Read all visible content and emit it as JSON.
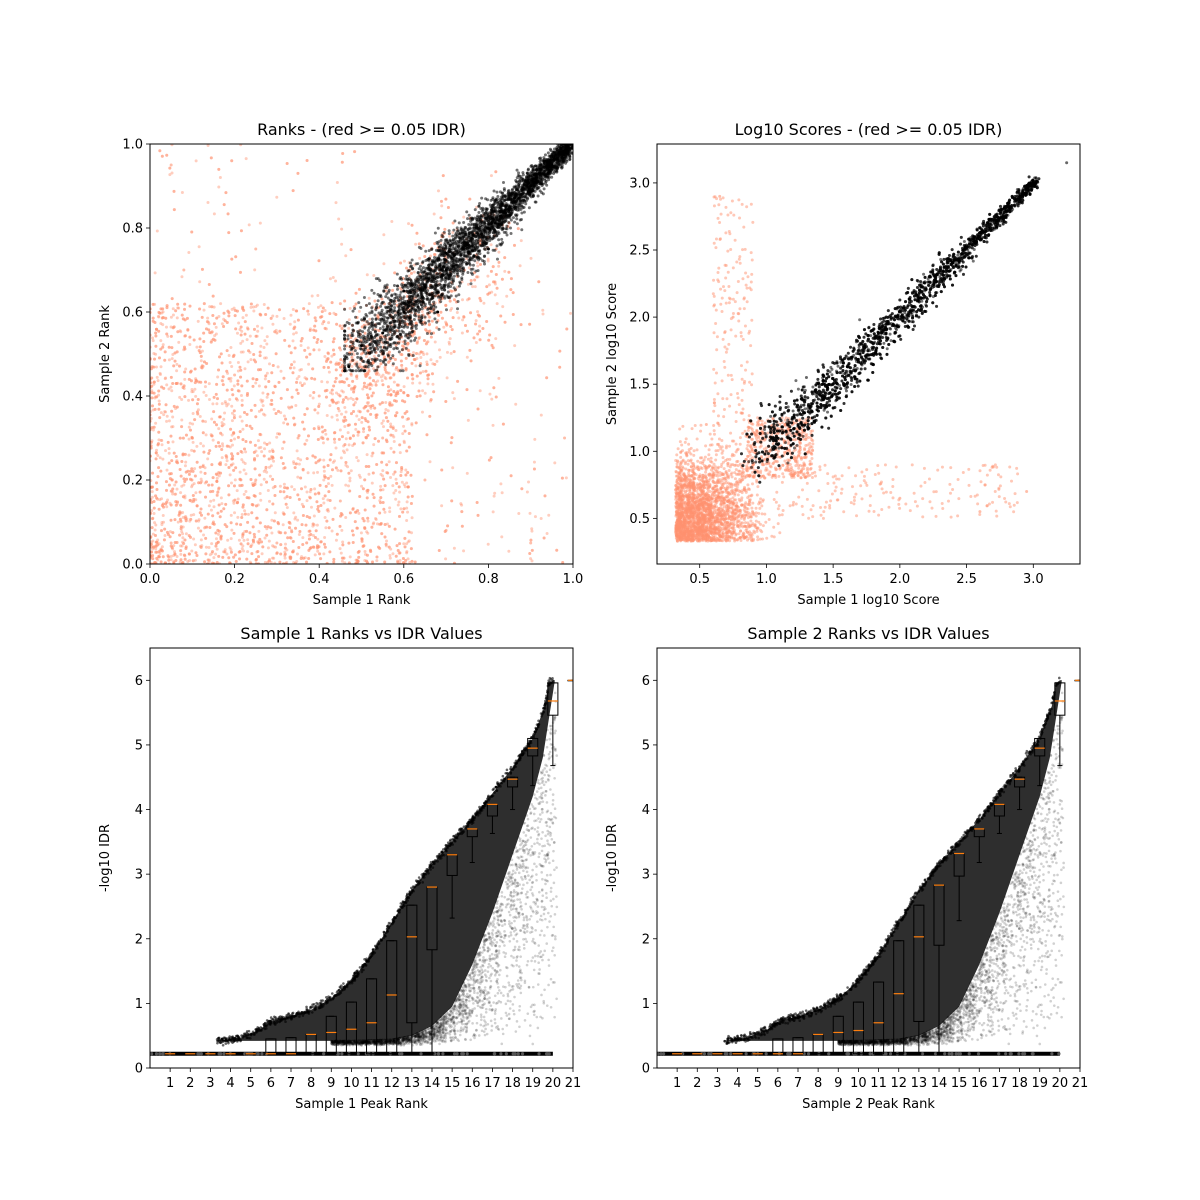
{
  "figure": {
    "background": "#ffffff"
  },
  "chart_data": [
    {
      "type": "scatter",
      "title": "Ranks - (red >= 0.05 IDR)",
      "xlabel": "Sample 1 Rank",
      "ylabel": "Sample 2 Rank",
      "xlim": [
        0,
        1
      ],
      "ylim": [
        0,
        1
      ],
      "xticks": [
        0.0,
        0.2,
        0.4,
        0.6,
        0.8,
        1.0
      ],
      "yticks": [
        0.0,
        0.2,
        0.4,
        0.6,
        0.8,
        1.0
      ],
      "xtick_labels": [
        "0.0",
        "0.2",
        "0.4",
        "0.6",
        "0.8",
        "1.0"
      ],
      "ytick_labels": [
        "0.0",
        "0.2",
        "0.4",
        "0.6",
        "0.8",
        "1.0"
      ],
      "grid": false,
      "series": [
        {
          "role": "idr >= 0.05",
          "color": "#ff9270",
          "points": [
            [
              0.05,
              0.05
            ],
            [
              0.15,
              0.1
            ],
            [
              0.25,
              0.2
            ],
            [
              0.1,
              0.3
            ],
            [
              0.3,
              0.05
            ],
            [
              0.35,
              0.3
            ],
            [
              0.2,
              0.45
            ],
            [
              0.45,
              0.15
            ],
            [
              0.4,
              0.4
            ],
            [
              0.5,
              0.5
            ],
            [
              0.55,
              0.3
            ],
            [
              0.3,
              0.55
            ],
            [
              0.6,
              0.6
            ],
            [
              0.62,
              0.45
            ],
            [
              0.45,
              0.62
            ],
            [
              0.7,
              0.08
            ],
            [
              0.08,
              0.7
            ],
            [
              0.9,
              0.05
            ],
            [
              0.05,
              0.95
            ],
            [
              0.98,
              0.3
            ],
            [
              0.65,
              0.2
            ],
            [
              0.25,
              0.75
            ]
          ]
        },
        {
          "role": "idr < 0.05",
          "color": "#000000",
          "points": [
            [
              0.47,
              0.47
            ],
            [
              0.5,
              0.52
            ],
            [
              0.55,
              0.55
            ],
            [
              0.6,
              0.6
            ],
            [
              0.65,
              0.66
            ],
            [
              0.7,
              0.7
            ],
            [
              0.75,
              0.76
            ],
            [
              0.8,
              0.8
            ],
            [
              0.85,
              0.85
            ],
            [
              0.9,
              0.9
            ],
            [
              0.95,
              0.95
            ],
            [
              1.0,
              1.0
            ],
            [
              0.6,
              0.65
            ],
            [
              0.7,
              0.74
            ],
            [
              0.68,
              0.6
            ],
            [
              0.8,
              0.75
            ]
          ]
        }
      ]
    },
    {
      "type": "scatter",
      "title": "Log10 Scores - (red >= 0.05 IDR)",
      "xlabel": "Sample 1 log10 Score",
      "ylabel": "Sample 2 log10 Score",
      "xlim": [
        0.18,
        3.35
      ],
      "ylim": [
        0.16,
        3.29
      ],
      "xticks": [
        0.5,
        1.0,
        1.5,
        2.0,
        2.5,
        3.0
      ],
      "yticks": [
        0.5,
        1.0,
        1.5,
        2.0,
        2.5,
        3.0
      ],
      "xtick_labels": [
        "0.5",
        "1.0",
        "1.5",
        "2.0",
        "2.5",
        "3.0"
      ],
      "ytick_labels": [
        "0.5",
        "1.0",
        "1.5",
        "2.0",
        "2.5",
        "3.0"
      ],
      "grid": false,
      "series": [
        {
          "role": "idr >= 0.05",
          "color": "#ff9270",
          "points": [
            [
              0.35,
              0.35
            ],
            [
              0.5,
              0.6
            ],
            [
              0.7,
              0.5
            ],
            [
              0.6,
              0.8
            ],
            [
              0.8,
              0.7
            ],
            [
              0.9,
              0.9
            ],
            [
              1.0,
              1.0
            ],
            [
              0.55,
              1.2
            ],
            [
              1.2,
              0.6
            ],
            [
              0.65,
              2.9
            ],
            [
              0.75,
              2.0
            ],
            [
              2.0,
              0.65
            ],
            [
              2.6,
              0.55
            ],
            [
              2.95,
              0.7
            ],
            [
              1.1,
              1.2
            ]
          ]
        },
        {
          "role": "idr < 0.05",
          "color": "#000000",
          "points": [
            [
              0.92,
              0.92
            ],
            [
              1.0,
              1.0
            ],
            [
              1.2,
              1.3
            ],
            [
              1.5,
              1.5
            ],
            [
              1.8,
              1.8
            ],
            [
              2.0,
              2.0
            ],
            [
              2.3,
              2.3
            ],
            [
              2.6,
              2.6
            ],
            [
              2.9,
              2.9
            ],
            [
              3.0,
              3.0
            ],
            [
              3.25,
              3.15
            ],
            [
              1.3,
              1.55
            ],
            [
              1.6,
              1.45
            ]
          ]
        }
      ]
    },
    {
      "type": "scatter",
      "title": "Sample 1 Ranks vs IDR Values",
      "xlabel": "Sample 1 Peak Rank",
      "ylabel": "-log10 IDR",
      "xlim": [
        0,
        21
      ],
      "ylim": [
        0,
        6.5
      ],
      "xticks": [
        1,
        2,
        3,
        4,
        5,
        6,
        7,
        8,
        9,
        10,
        11,
        12,
        13,
        14,
        15,
        16,
        17,
        18,
        19,
        20,
        21
      ],
      "yticks": [
        0,
        1,
        2,
        3,
        4,
        5,
        6
      ],
      "xtick_labels": [
        "1",
        "2",
        "3",
        "4",
        "5",
        "6",
        "7",
        "8",
        "9",
        "10",
        "11",
        "12",
        "13",
        "14",
        "15",
        "16",
        "17",
        "18",
        "19",
        "20",
        "21"
      ],
      "ytick_labels": [
        "0",
        "1",
        "2",
        "3",
        "4",
        "5",
        "6"
      ],
      "grid": false,
      "scatter_upper_edge": [
        [
          3.3,
          0.42
        ],
        [
          4.5,
          0.47
        ],
        [
          5.5,
          0.6
        ],
        [
          6,
          0.72
        ],
        [
          7,
          0.8
        ],
        [
          8,
          0.9
        ],
        [
          9,
          1.08
        ],
        [
          10,
          1.35
        ],
        [
          11,
          1.75
        ],
        [
          12,
          2.25
        ],
        [
          13,
          2.75
        ],
        [
          14,
          3.15
        ],
        [
          15,
          3.5
        ],
        [
          16,
          3.85
        ],
        [
          17,
          4.25
        ],
        [
          18,
          4.65
        ],
        [
          19,
          5.1
        ],
        [
          19.6,
          5.6
        ],
        [
          19.8,
          5.95
        ],
        [
          20,
          6.0
        ]
      ],
      "scatter_lower_edge": [
        [
          3.3,
          0.42
        ],
        [
          5,
          0.42
        ],
        [
          10,
          0.42
        ],
        [
          12,
          0.44
        ],
        [
          13,
          0.5
        ],
        [
          14,
          0.65
        ],
        [
          15,
          0.95
        ],
        [
          16,
          1.6
        ],
        [
          17,
          2.4
        ],
        [
          18,
          3.3
        ],
        [
          19,
          4.2
        ],
        [
          19.5,
          4.8
        ],
        [
          20,
          5.8
        ],
        [
          20.1,
          6.0
        ]
      ],
      "scatter_baseline": {
        "y": 0.22,
        "x_from": 0,
        "x_to": 20
      },
      "boxplot": {
        "positions": [
          1,
          2,
          3,
          4,
          5,
          6,
          7,
          8,
          9,
          10,
          11,
          12,
          13,
          14,
          15,
          16,
          17,
          18,
          19,
          20,
          21
        ],
        "medians": [
          0.22,
          0.22,
          0.22,
          0.22,
          0.22,
          0.22,
          0.22,
          0.52,
          0.55,
          0.6,
          0.7,
          1.13,
          2.03,
          2.8,
          3.3,
          3.7,
          4.08,
          4.47,
          4.95,
          5.68,
          6.0
        ],
        "q1": [
          0.22,
          0.22,
          0.22,
          0.22,
          0.22,
          0.22,
          0.22,
          0.22,
          0.22,
          0.22,
          0.22,
          0.22,
          0.7,
          1.83,
          2.98,
          3.58,
          3.9,
          4.35,
          4.83,
          5.46,
          6.0
        ],
        "q3": [
          0.22,
          0.22,
          0.22,
          0.22,
          0.22,
          0.45,
          0.47,
          0.52,
          0.8,
          1.02,
          1.38,
          1.97,
          2.52,
          2.8,
          3.3,
          3.7,
          4.08,
          4.5,
          5.1,
          5.96,
          6.0
        ],
        "whisker_low": [
          0.22,
          0.22,
          0.22,
          0.22,
          0.22,
          0.22,
          0.22,
          0.22,
          0.22,
          0.22,
          0.22,
          0.22,
          0.22,
          0.22,
          2.32,
          3.18,
          3.63,
          4.0,
          4.37,
          4.68,
          6.0
        ],
        "whisker_high": [
          0.22,
          0.22,
          0.22,
          0.22,
          0.22,
          0.45,
          0.47,
          0.52,
          0.8,
          1.02,
          1.38,
          1.97,
          2.52,
          2.8,
          3.3,
          3.7,
          4.08,
          4.5,
          5.1,
          5.96,
          6.0
        ]
      }
    },
    {
      "type": "scatter",
      "title": "Sample 2 Ranks vs IDR Values",
      "xlabel": "Sample 2 Peak Rank",
      "ylabel": "-log10 IDR",
      "xlim": [
        0,
        21
      ],
      "ylim": [
        0,
        6.5
      ],
      "xticks": [
        1,
        2,
        3,
        4,
        5,
        6,
        7,
        8,
        9,
        10,
        11,
        12,
        13,
        14,
        15,
        16,
        17,
        18,
        19,
        20,
        21
      ],
      "yticks": [
        0,
        1,
        2,
        3,
        4,
        5,
        6
      ],
      "xtick_labels": [
        "1",
        "2",
        "3",
        "4",
        "5",
        "6",
        "7",
        "8",
        "9",
        "10",
        "11",
        "12",
        "13",
        "14",
        "15",
        "16",
        "17",
        "18",
        "19",
        "20",
        "21"
      ],
      "ytick_labels": [
        "0",
        "1",
        "2",
        "3",
        "4",
        "5",
        "6"
      ],
      "grid": false,
      "scatter_upper_edge": [
        [
          3.3,
          0.42
        ],
        [
          4.5,
          0.47
        ],
        [
          5.5,
          0.6
        ],
        [
          6,
          0.72
        ],
        [
          7,
          0.8
        ],
        [
          8,
          0.9
        ],
        [
          9,
          1.08
        ],
        [
          10,
          1.35
        ],
        [
          11,
          1.75
        ],
        [
          12,
          2.25
        ],
        [
          13,
          2.75
        ],
        [
          14,
          3.15
        ],
        [
          15,
          3.5
        ],
        [
          16,
          3.85
        ],
        [
          17,
          4.25
        ],
        [
          18,
          4.65
        ],
        [
          19,
          5.1
        ],
        [
          19.6,
          5.6
        ],
        [
          19.8,
          5.95
        ],
        [
          20,
          6.0
        ]
      ],
      "scatter_lower_edge": [
        [
          3.3,
          0.42
        ],
        [
          5,
          0.42
        ],
        [
          10,
          0.42
        ],
        [
          12,
          0.44
        ],
        [
          13,
          0.5
        ],
        [
          14,
          0.65
        ],
        [
          15,
          0.95
        ],
        [
          16,
          1.6
        ],
        [
          17,
          2.4
        ],
        [
          18,
          3.3
        ],
        [
          19,
          4.2
        ],
        [
          19.5,
          4.8
        ],
        [
          20,
          5.8
        ],
        [
          20.1,
          6.0
        ]
      ],
      "scatter_baseline": {
        "y": 0.22,
        "x_from": 0,
        "x_to": 20
      },
      "boxplot": {
        "positions": [
          1,
          2,
          3,
          4,
          5,
          6,
          7,
          8,
          9,
          10,
          11,
          12,
          13,
          14,
          15,
          16,
          17,
          18,
          19,
          20,
          21
        ],
        "medians": [
          0.22,
          0.22,
          0.22,
          0.22,
          0.22,
          0.22,
          0.22,
          0.52,
          0.55,
          0.58,
          0.7,
          1.15,
          2.03,
          2.83,
          3.32,
          3.7,
          4.08,
          4.47,
          4.95,
          5.68,
          6.0
        ],
        "q1": [
          0.22,
          0.22,
          0.22,
          0.22,
          0.22,
          0.22,
          0.22,
          0.22,
          0.22,
          0.22,
          0.22,
          0.22,
          0.72,
          1.9,
          2.97,
          3.58,
          3.9,
          4.35,
          4.83,
          5.46,
          6.0
        ],
        "q3": [
          0.22,
          0.22,
          0.22,
          0.22,
          0.22,
          0.45,
          0.47,
          0.52,
          0.8,
          1.02,
          1.33,
          1.97,
          2.52,
          2.83,
          3.32,
          3.7,
          4.08,
          4.5,
          5.1,
          5.96,
          6.0
        ],
        "whisker_low": [
          0.22,
          0.22,
          0.22,
          0.22,
          0.22,
          0.22,
          0.22,
          0.22,
          0.22,
          0.22,
          0.22,
          0.22,
          0.22,
          0.22,
          2.28,
          3.18,
          3.63,
          4.0,
          4.37,
          4.68,
          6.0
        ],
        "whisker_high": [
          0.22,
          0.22,
          0.22,
          0.22,
          0.22,
          0.45,
          0.47,
          0.52,
          0.8,
          1.02,
          1.33,
          1.97,
          2.52,
          2.83,
          3.32,
          3.7,
          4.08,
          4.5,
          5.1,
          5.96,
          6.0
        ]
      }
    }
  ]
}
